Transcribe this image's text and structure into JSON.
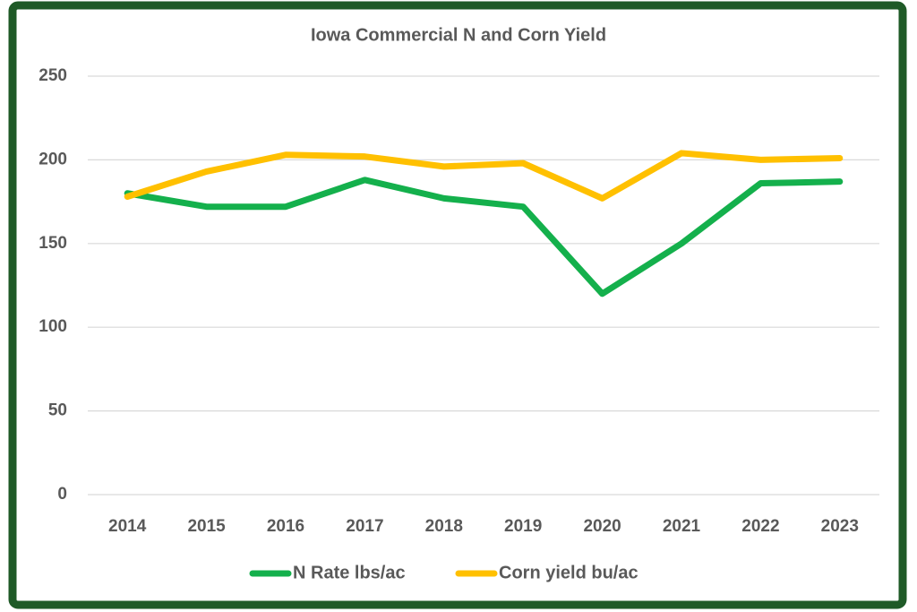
{
  "chart_data": {
    "type": "line",
    "title": "Iowa Commercial N and Corn Yield",
    "categories": [
      "2014",
      "2015",
      "2016",
      "2017",
      "2018",
      "2019",
      "2020",
      "2021",
      "2022",
      "2023"
    ],
    "series": [
      {
        "name": "N Rate lbs/ac",
        "color": "#14b04c",
        "values": [
          180,
          172,
          172,
          188,
          177,
          172,
          120,
          150,
          186,
          187
        ]
      },
      {
        "name": "Corn yield bu/ac",
        "color": "#ffc000",
        "values": [
          178,
          193,
          203,
          202,
          196,
          198,
          177,
          204,
          200,
          201
        ]
      }
    ],
    "ylim": [
      0,
      250
    ],
    "yticks": [
      0,
      50,
      100,
      150,
      200,
      250
    ],
    "grid": true,
    "legend": "bottom"
  }
}
